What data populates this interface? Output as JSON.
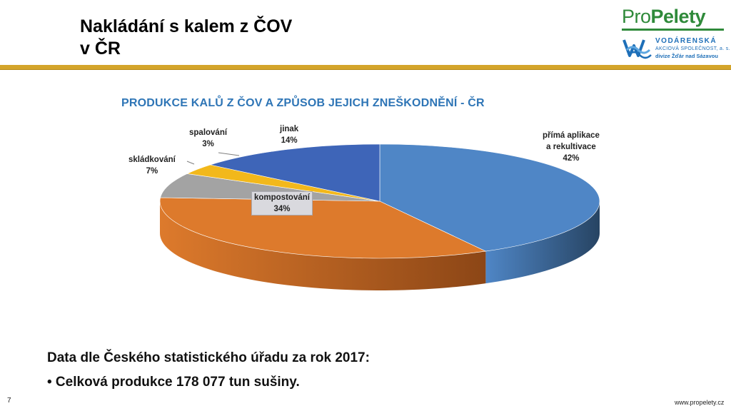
{
  "slide": {
    "title_line1": "Nakládání s kalem z ČOV",
    "title_line2": "v ČR",
    "page_number": "7",
    "footer_url": "www.propelety.cz"
  },
  "logos": {
    "propelety_pro": "Pro",
    "propelety_rest": "Pelety",
    "vod_name": "VODÁRENSKÁ",
    "vod_company": "AKCIOVÁ SPOLEČNOST, a. s.",
    "vod_division": "divize Žďár nad Sázavou"
  },
  "notes": {
    "source": "Data dle Českého statistického úřadu za rok 2017:",
    "bullet": "• Celková produkce 178 077 tun sušiny."
  },
  "colors": {
    "accent_rule": "#d4a52a",
    "chart_title": "#2e75b6",
    "brand_green": "#2f8a3a",
    "brand_blue": "#1e6fb8"
  },
  "chart_data": {
    "type": "pie",
    "style": "3d",
    "title": "PRODUKCE KALŮ Z ČOV A ZPŮSOB JEJICH ZNEŠKODNĚNÍ - ČR",
    "slices": [
      {
        "name": "přímá aplikace a rekultivace",
        "value": 42,
        "label_lines": [
          "přímá aplikace",
          "a rekultivace"
        ],
        "pct_label": "42%",
        "color": "#4f86c6",
        "side_color": "#274463"
      },
      {
        "name": "kompostování",
        "value": 34,
        "label_lines": [
          "kompostování"
        ],
        "pct_label": "34%",
        "color": "#dd7a2c",
        "side_color": "#8c4616"
      },
      {
        "name": "skládkování",
        "value": 7,
        "label_lines": [
          "skládkování"
        ],
        "pct_label": "7%",
        "color": "#a3a3a3",
        "side_color": "#666666"
      },
      {
        "name": "spalování",
        "value": 3,
        "label_lines": [
          "spalování"
        ],
        "pct_label": "3%",
        "color": "#f2b81b",
        "side_color": "#a17a0e"
      },
      {
        "name": "jinak",
        "value": 14,
        "label_lines": [
          "jinak"
        ],
        "pct_label": "14%",
        "color": "#3e65b8",
        "side_color": "#203766"
      }
    ],
    "legend": "none"
  }
}
